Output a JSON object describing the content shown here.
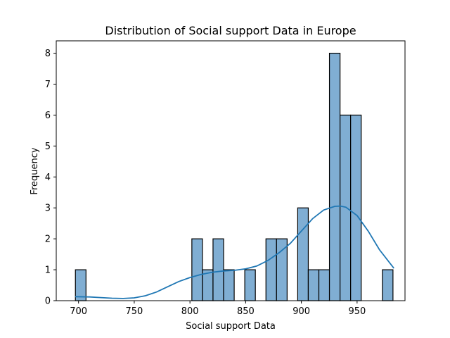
{
  "chart_data": {
    "type": "bar",
    "title": "Distribution of Social support Data in Europe",
    "xlabel": "Social support Data",
    "ylabel": "Frequency",
    "xlim": [
      680,
      993
    ],
    "ylim": [
      0,
      8.4
    ],
    "x_ticks": [
      700,
      750,
      800,
      850,
      900,
      950
    ],
    "y_ticks": [
      0,
      1,
      2,
      3,
      4,
      5,
      6,
      7,
      8
    ],
    "bin_edges": [
      697.2,
      706.7,
      716.2,
      725.7,
      735.2,
      744.7,
      754.2,
      763.7,
      773.2,
      782.7,
      792.2,
      801.7,
      811.2,
      820.7,
      830.2,
      839.7,
      849.2,
      858.7,
      868.2,
      877.7,
      887.2,
      896.7,
      906.2,
      915.7,
      925.2,
      934.7,
      944.2,
      953.7,
      963.2,
      972.7,
      982.2
    ],
    "counts": [
      1,
      0,
      0,
      0,
      0,
      0,
      0,
      0,
      0,
      0,
      0,
      2,
      1,
      2,
      1,
      0,
      1,
      0,
      2,
      2,
      0,
      3,
      1,
      1,
      8,
      6,
      6,
      0,
      0,
      1
    ],
    "kde": {
      "x": [
        697,
        710,
        720,
        730,
        740,
        750,
        760,
        770,
        780,
        790,
        800,
        810,
        820,
        830,
        840,
        850,
        860,
        870,
        880,
        890,
        900,
        910,
        920,
        930,
        935,
        940,
        950,
        960,
        970,
        983
      ],
      "y": [
        0.13,
        0.12,
        0.1,
        0.08,
        0.07,
        0.09,
        0.16,
        0.28,
        0.45,
        0.62,
        0.75,
        0.85,
        0.92,
        0.96,
        0.98,
        1.03,
        1.12,
        1.3,
        1.55,
        1.85,
        2.25,
        2.65,
        2.93,
        3.05,
        3.06,
        3.02,
        2.75,
        2.25,
        1.65,
        1.05
      ]
    },
    "grid": false,
    "colors": {
      "bar": "#80aed3",
      "kde": "#1f77b4"
    }
  }
}
